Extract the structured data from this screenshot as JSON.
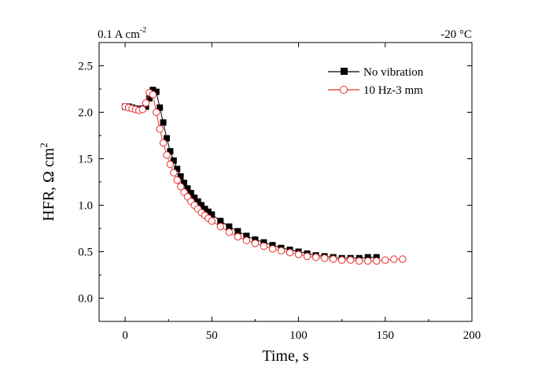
{
  "chart_data": {
    "type": "scatter",
    "top_left_label": {
      "main": "0.1 A cm",
      "sup": "-2"
    },
    "top_right_label": "-20 °C",
    "xlabel": "Time, s",
    "ylabel": {
      "main": "HFR, Ω cm",
      "sup": "2"
    },
    "xlim": [
      -15,
      200
    ],
    "ylim": [
      -0.25,
      2.75
    ],
    "xticks": [
      0,
      50,
      100,
      150,
      200
    ],
    "yticks": [
      0.0,
      0.5,
      1.0,
      1.5,
      2.0,
      2.5
    ],
    "ytick_labels": [
      "0.0",
      "0.5",
      "1.0",
      "1.5",
      "2.0",
      "2.5"
    ],
    "legend_position": "top-right",
    "series": [
      {
        "name": "No vibration",
        "color": "#000000",
        "marker": "filled-square",
        "x": [
          0,
          2,
          4,
          6,
          8,
          10,
          12,
          14,
          16,
          18,
          20,
          22,
          24,
          26,
          28,
          30,
          32,
          34,
          36,
          38,
          40,
          42,
          44,
          46,
          48,
          50,
          55,
          60,
          65,
          70,
          75,
          80,
          85,
          90,
          95,
          100,
          105,
          110,
          115,
          120,
          125,
          130,
          135,
          140,
          145
        ],
        "y": [
          2.06,
          2.06,
          2.05,
          2.04,
          2.03,
          2.04,
          2.06,
          2.15,
          2.24,
          2.22,
          2.05,
          1.89,
          1.72,
          1.58,
          1.48,
          1.39,
          1.31,
          1.24,
          1.18,
          1.13,
          1.08,
          1.04,
          1.0,
          0.96,
          0.93,
          0.9,
          0.83,
          0.77,
          0.72,
          0.67,
          0.63,
          0.6,
          0.57,
          0.54,
          0.52,
          0.5,
          0.48,
          0.46,
          0.45,
          0.44,
          0.43,
          0.43,
          0.43,
          0.44,
          0.44
        ]
      },
      {
        "name": "10 Hz-3 mm",
        "color": "#e8312f",
        "marker": "open-circle",
        "x": [
          0,
          2,
          4,
          6,
          8,
          10,
          12,
          14,
          16,
          18,
          20,
          22,
          24,
          26,
          28,
          30,
          32,
          34,
          36,
          38,
          40,
          42,
          44,
          46,
          48,
          50,
          55,
          60,
          65,
          70,
          75,
          80,
          85,
          90,
          95,
          100,
          105,
          110,
          115,
          120,
          125,
          130,
          135,
          140,
          145,
          150,
          155,
          160
        ],
        "y": [
          2.06,
          2.05,
          2.04,
          2.03,
          2.02,
          2.03,
          2.1,
          2.21,
          2.19,
          2.0,
          1.82,
          1.67,
          1.54,
          1.44,
          1.35,
          1.27,
          1.2,
          1.14,
          1.09,
          1.04,
          1.0,
          0.96,
          0.92,
          0.89,
          0.86,
          0.83,
          0.77,
          0.71,
          0.66,
          0.62,
          0.59,
          0.56,
          0.53,
          0.51,
          0.49,
          0.47,
          0.45,
          0.44,
          0.43,
          0.42,
          0.41,
          0.41,
          0.4,
          0.4,
          0.4,
          0.41,
          0.42,
          0.42
        ]
      }
    ]
  }
}
